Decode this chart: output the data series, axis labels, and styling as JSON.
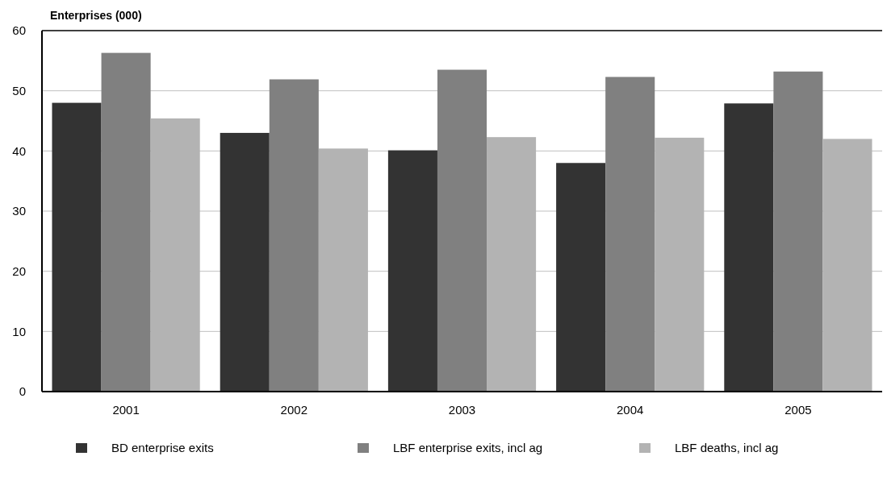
{
  "chart_data": {
    "type": "bar",
    "ylabel": "Enterprises (000)",
    "categories": [
      "2001",
      "2002",
      "2003",
      "2004",
      "2005"
    ],
    "series": [
      {
        "name": "BD enterprise exits",
        "color": "#333333",
        "values": [
          48.0,
          43.0,
          40.1,
          38.0,
          47.9
        ]
      },
      {
        "name": "LBF enterprise exits, incl ag",
        "color": "#808080",
        "values": [
          56.3,
          51.9,
          53.5,
          52.3,
          53.2
        ]
      },
      {
        "name": "LBF deaths, incl ag",
        "color": "#b3b3b3",
        "values": [
          45.4,
          40.4,
          42.3,
          42.2,
          42.0
        ]
      }
    ],
    "ylim": [
      0,
      60
    ],
    "yticks": [
      0,
      10,
      20,
      30,
      40,
      50,
      60
    ],
    "grid": "y",
    "legend": "bottom"
  }
}
